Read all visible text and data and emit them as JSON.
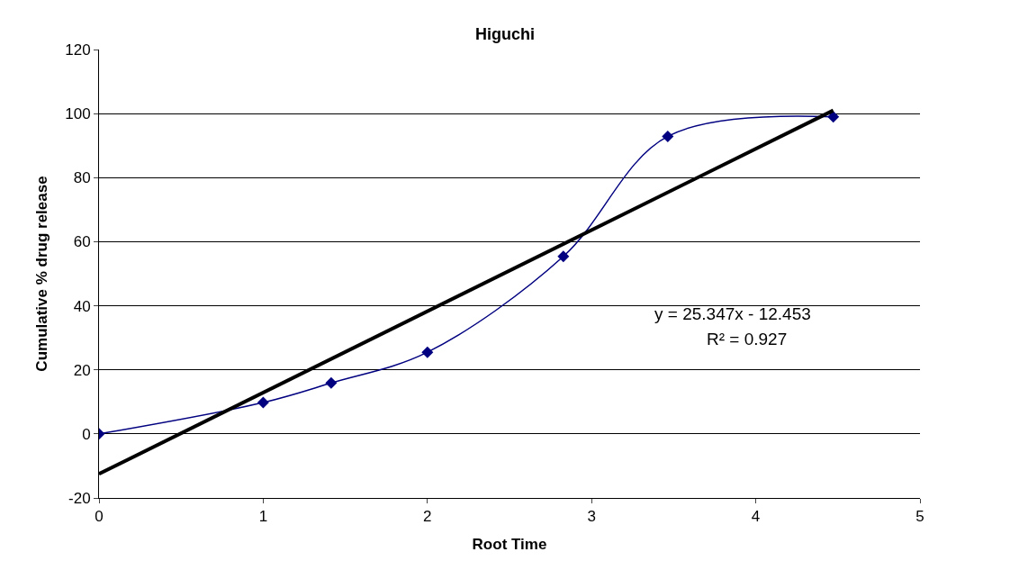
{
  "chart_data": {
    "type": "line",
    "title": "Higuchi",
    "xlabel": "Root Time",
    "ylabel": "Cumulative % drug release",
    "xlim": [
      0,
      5
    ],
    "xticks": [
      0,
      1,
      2,
      3,
      4,
      5
    ],
    "ylim": [
      -20,
      120
    ],
    "yticks": [
      -20,
      0,
      20,
      40,
      60,
      80,
      100,
      120
    ],
    "grid": "y",
    "series": [
      {
        "color": "#000080",
        "marker": "diamond",
        "x": [
          0,
          1,
          1.414,
          2,
          2.828,
          3.464,
          4.472
        ],
        "values": [
          0,
          9.8,
          15.9,
          25.5,
          55.4,
          92.9,
          99
        ]
      },
      {
        "color": "#000000",
        "marker": "none",
        "x": [
          0,
          4.472
        ],
        "values": [
          -12.5,
          101
        ]
      }
    ],
    "annotations": [
      "y = 25.347x - 12.453",
      "R² = 0.927"
    ]
  }
}
